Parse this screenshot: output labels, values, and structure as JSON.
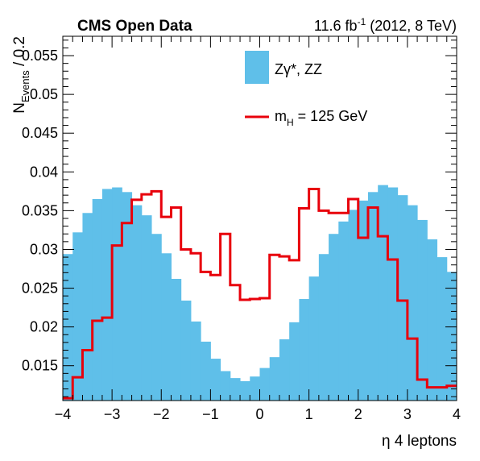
{
  "header": {
    "left": "CMS Open Data",
    "right_prefix": "11.6 fb",
    "right_sup": "-1",
    "right_suffix": " (2012, 8 TeV)"
  },
  "axes": {
    "ylabel_main": "N",
    "ylabel_sub": "Events",
    "ylabel_suffix": " / 0.2",
    "xlabel": "η 4 leptons"
  },
  "legend": {
    "entries": [
      {
        "label": "Zγ*, ZZ"
      },
      {
        "label_main": "m",
        "label_sub": "H",
        "label_suffix": " = 125 GeV"
      }
    ]
  },
  "colors": {
    "background_fill": "#5fbfe9",
    "signal_line": "#e8000b"
  },
  "chart_data": {
    "type": "histogram",
    "bin_width": 0.2,
    "xlim": [
      -4,
      4
    ],
    "ylim": [
      0.0105,
      0.0575
    ],
    "x_ticks": [
      "−4",
      "−3",
      "−2",
      "−1",
      "0",
      "1",
      "2",
      "3",
      "4"
    ],
    "y_ticks": [
      "0.015",
      "0.02",
      "0.025",
      "0.03",
      "0.035",
      "0.04",
      "0.045",
      "0.05",
      "0.055"
    ],
    "y_tick_values": [
      0.015,
      0.02,
      0.025,
      0.03,
      0.035,
      0.04,
      0.045,
      0.05,
      0.055
    ],
    "series": [
      {
        "name": "Zγ*, ZZ",
        "style": "filled",
        "values": [
          0.0294,
          0.0322,
          0.0347,
          0.0365,
          0.0378,
          0.038,
          0.0374,
          0.0357,
          0.0344,
          0.032,
          0.0295,
          0.0262,
          0.0234,
          0.0207,
          0.0181,
          0.0159,
          0.0143,
          0.0134,
          0.013,
          0.0136,
          0.0147,
          0.0161,
          0.0184,
          0.0206,
          0.0236,
          0.0265,
          0.0294,
          0.032,
          0.0336,
          0.0351,
          0.0363,
          0.0374,
          0.0383,
          0.038,
          0.037,
          0.0357,
          0.0338,
          0.0313,
          0.029,
          0.0271
        ]
      },
      {
        "name": "m_H = 125 GeV",
        "style": "line",
        "values": [
          0.0108,
          0.0135,
          0.017,
          0.0208,
          0.0212,
          0.0305,
          0.0334,
          0.0364,
          0.0371,
          0.0375,
          0.0342,
          0.0354,
          0.03,
          0.0295,
          0.0271,
          0.0267,
          0.032,
          0.0254,
          0.0235,
          0.0236,
          0.0237,
          0.0293,
          0.0291,
          0.0286,
          0.0353,
          0.0378,
          0.035,
          0.0347,
          0.0347,
          0.0365,
          0.0315,
          0.0354,
          0.0317,
          0.0287,
          0.0234,
          0.0185,
          0.0132,
          0.0122,
          0.0122,
          0.0124
        ]
      }
    ]
  }
}
